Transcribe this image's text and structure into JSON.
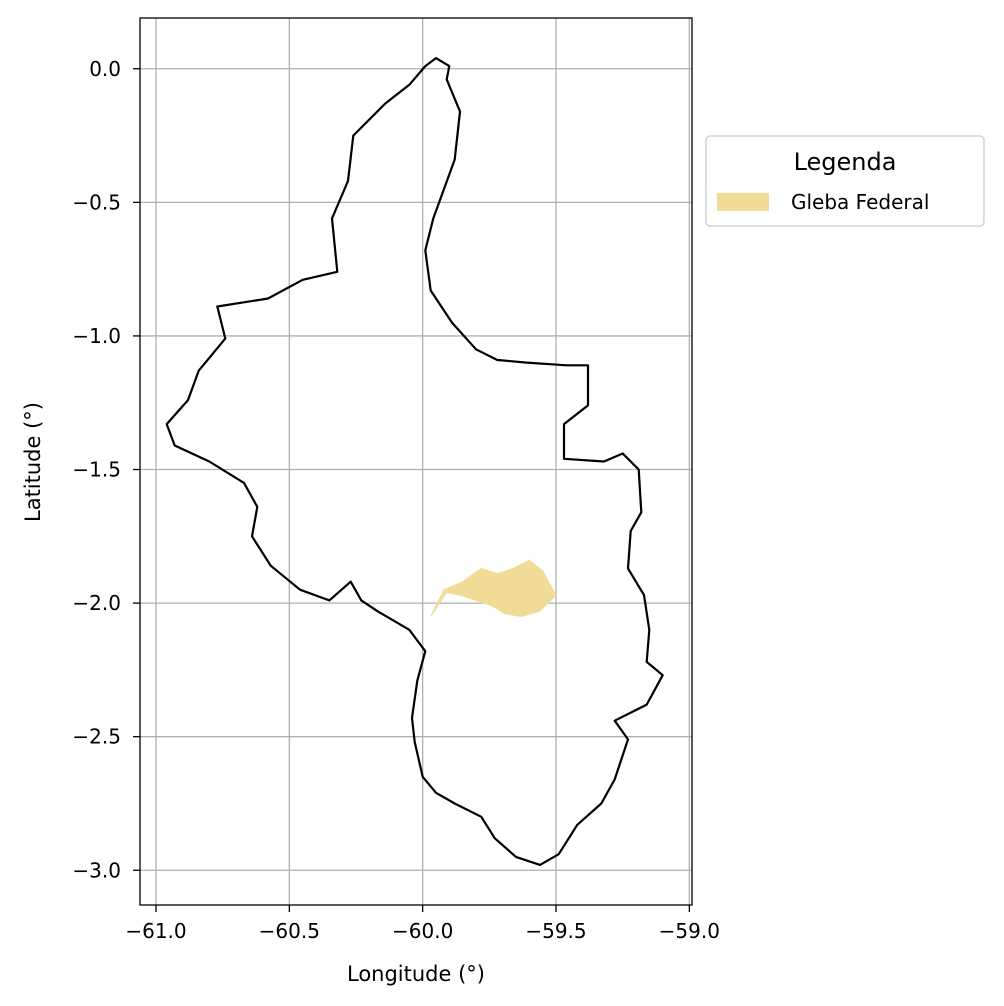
{
  "chart_data": {
    "type": "map",
    "xlabel": "Longitude (°)",
    "ylabel": "Latitude (°)",
    "xlim": [
      -61.06,
      -58.99
    ],
    "ylim": [
      -3.13,
      0.19
    ],
    "xticks": [
      -61.0,
      -60.5,
      -60.0,
      -59.5,
      -59.0
    ],
    "xtick_labels": [
      "−61.0",
      "−60.5",
      "−60.0",
      "−59.5",
      "−59.0"
    ],
    "yticks": [
      0.0,
      -0.5,
      -1.0,
      -1.5,
      -2.0,
      -2.5,
      -3.0
    ],
    "ytick_labels": [
      "0.0",
      "−0.5",
      "−1.0",
      "−1.5",
      "−2.0",
      "−2.5",
      "−3.0"
    ],
    "grid": true,
    "legend": {
      "title": "Legenda",
      "placement": "outside right, upper",
      "entries": [
        {
          "label": "Gleba Federal",
          "color": "#f0dc96"
        }
      ]
    },
    "layers": [
      {
        "name": "",
        "kind": "boundary-outline",
        "color": "#000000",
        "coordinates": [
          [
            -59.95,
            0.04
          ],
          [
            -59.9,
            0.01
          ],
          [
            -59.91,
            -0.04
          ],
          [
            -59.86,
            -0.16
          ],
          [
            -59.88,
            -0.34
          ],
          [
            -59.96,
            -0.56
          ],
          [
            -59.99,
            -0.68
          ],
          [
            -59.97,
            -0.83
          ],
          [
            -59.89,
            -0.95
          ],
          [
            -59.8,
            -1.05
          ],
          [
            -59.72,
            -1.09
          ],
          [
            -59.61,
            -1.1
          ],
          [
            -59.46,
            -1.11
          ],
          [
            -59.38,
            -1.11
          ],
          [
            -59.38,
            -1.26
          ],
          [
            -59.47,
            -1.33
          ],
          [
            -59.47,
            -1.46
          ],
          [
            -59.32,
            -1.47
          ],
          [
            -59.25,
            -1.44
          ],
          [
            -59.19,
            -1.5
          ],
          [
            -59.18,
            -1.66
          ],
          [
            -59.22,
            -1.73
          ],
          [
            -59.23,
            -1.87
          ],
          [
            -59.17,
            -1.97
          ],
          [
            -59.15,
            -2.1
          ],
          [
            -59.16,
            -2.22
          ],
          [
            -59.1,
            -2.27
          ],
          [
            -59.16,
            -2.38
          ],
          [
            -59.28,
            -2.44
          ],
          [
            -59.23,
            -2.51
          ],
          [
            -59.28,
            -2.66
          ],
          [
            -59.33,
            -2.75
          ],
          [
            -59.42,
            -2.83
          ],
          [
            -59.49,
            -2.94
          ],
          [
            -59.56,
            -2.98
          ],
          [
            -59.65,
            -2.95
          ],
          [
            -59.73,
            -2.88
          ],
          [
            -59.78,
            -2.8
          ],
          [
            -59.88,
            -2.75
          ],
          [
            -59.95,
            -2.71
          ],
          [
            -60.0,
            -2.65
          ],
          [
            -60.03,
            -2.52
          ],
          [
            -60.04,
            -2.43
          ],
          [
            -60.02,
            -2.29
          ],
          [
            -59.99,
            -2.18
          ],
          [
            -60.05,
            -2.1
          ],
          [
            -60.17,
            -2.03
          ],
          [
            -60.23,
            -1.99
          ],
          [
            -60.27,
            -1.92
          ],
          [
            -60.35,
            -1.99
          ],
          [
            -60.46,
            -1.95
          ],
          [
            -60.57,
            -1.86
          ],
          [
            -60.64,
            -1.75
          ],
          [
            -60.62,
            -1.64
          ],
          [
            -60.67,
            -1.55
          ],
          [
            -60.8,
            -1.47
          ],
          [
            -60.93,
            -1.41
          ],
          [
            -60.96,
            -1.33
          ],
          [
            -60.88,
            -1.24
          ],
          [
            -60.84,
            -1.13
          ],
          [
            -60.74,
            -1.01
          ],
          [
            -60.77,
            -0.89
          ],
          [
            -60.58,
            -0.86
          ],
          [
            -60.45,
            -0.79
          ],
          [
            -60.32,
            -0.76
          ],
          [
            -60.34,
            -0.56
          ],
          [
            -60.28,
            -0.42
          ],
          [
            -60.26,
            -0.25
          ],
          [
            -60.14,
            -0.13
          ],
          [
            -60.05,
            -0.06
          ],
          [
            -59.99,
            0.01
          ],
          [
            -59.95,
            0.04
          ]
        ]
      },
      {
        "name": "Gleba Federal",
        "kind": "filled-polygon",
        "color": "#f0dc96",
        "coordinates": [
          [
            -59.97,
            -2.05
          ],
          [
            -59.92,
            -1.95
          ],
          [
            -59.85,
            -1.92
          ],
          [
            -59.78,
            -1.87
          ],
          [
            -59.72,
            -1.89
          ],
          [
            -59.66,
            -1.87
          ],
          [
            -59.6,
            -1.84
          ],
          [
            -59.55,
            -1.88
          ],
          [
            -59.5,
            -1.97
          ],
          [
            -59.56,
            -2.03
          ],
          [
            -59.63,
            -2.05
          ],
          [
            -59.69,
            -2.04
          ],
          [
            -59.74,
            -2.01
          ],
          [
            -59.8,
            -1.99
          ],
          [
            -59.86,
            -1.97
          ],
          [
            -59.91,
            -1.96
          ],
          [
            -59.97,
            -2.05
          ]
        ]
      }
    ]
  }
}
